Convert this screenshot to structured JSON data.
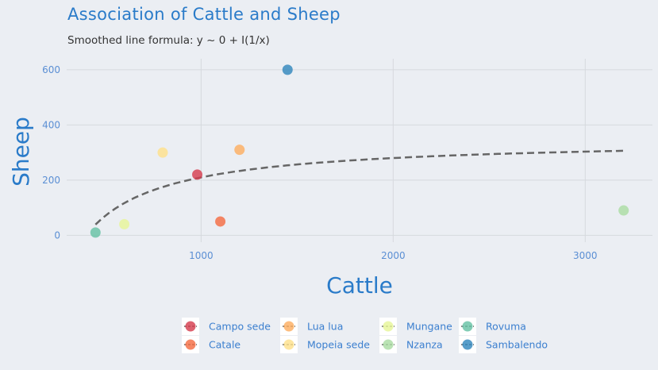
{
  "chart_data": {
    "type": "scatter",
    "title": "Association of Cattle and Sheep",
    "subtitle": "Smoothed line formula: y ~ 0 + I(1/x)",
    "xlabel": "Cattle",
    "ylabel": "Sheep",
    "xlim": [
      300,
      3350
    ],
    "ylim": [
      -25,
      640
    ],
    "xticks": [
      1000,
      2000,
      3000
    ],
    "yticks": [
      0,
      200,
      400,
      600
    ],
    "grid": true,
    "legend_position": "bottom",
    "series": [
      {
        "name": "Campo sede",
        "color": "#d53e4f",
        "x": [
          980
        ],
        "y": [
          220
        ]
      },
      {
        "name": "Catale",
        "color": "#f46d43",
        "x": [
          1100
        ],
        "y": [
          50
        ]
      },
      {
        "name": "Lua lua",
        "color": "#fdae61",
        "x": [
          1200
        ],
        "y": [
          310
        ]
      },
      {
        "name": "Mopeia sede",
        "color": "#fee08b",
        "x": [
          800
        ],
        "y": [
          300
        ]
      },
      {
        "name": "Mungane",
        "color": "#e6f598",
        "x": [
          600
        ],
        "y": [
          40
        ]
      },
      {
        "name": "Nzanza",
        "color": "#abdda4",
        "x": [
          3200
        ],
        "y": [
          90
        ]
      },
      {
        "name": "Rovuma",
        "color": "#66c2a5",
        "x": [
          450
        ],
        "y": [
          10
        ]
      },
      {
        "name": "Sambalendo",
        "color": "#3288bd",
        "x": [
          1450
        ],
        "y": [
          600
        ]
      }
    ],
    "smooth_line": {
      "style": "dashed",
      "color": "#666666",
      "x_range": [
        450,
        3200
      ],
      "a": 350,
      "b": -140000
    }
  }
}
